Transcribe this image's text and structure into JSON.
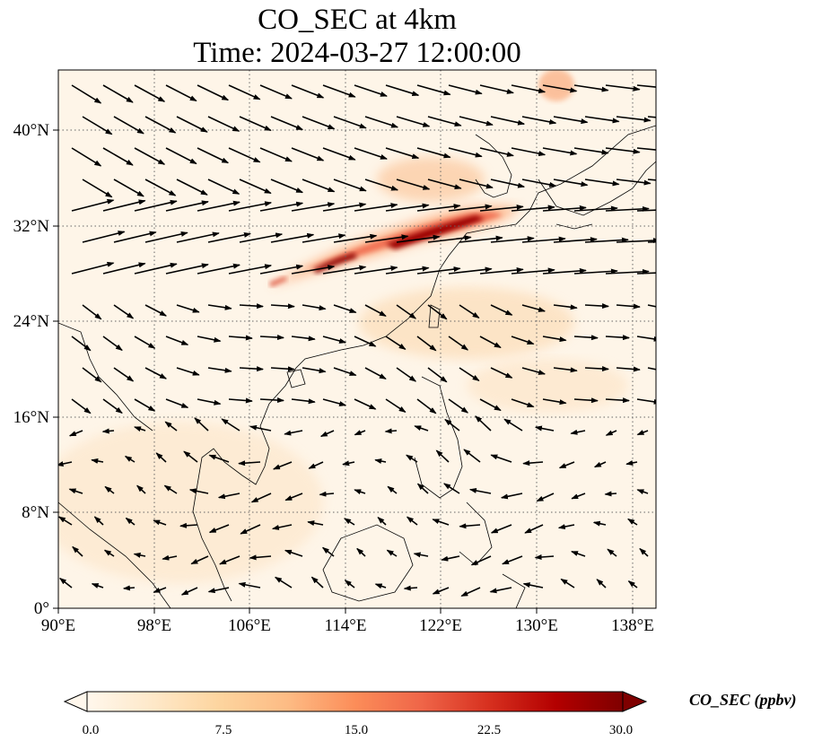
{
  "title": {
    "line1": "CO_SEC at 4km",
    "line2": "Time: 2024-03-27 12:00:00"
  },
  "map": {
    "lon_range": [
      90,
      140
    ],
    "lat_range": [
      0,
      45
    ],
    "x_ticks": [
      "90°E",
      "98°E",
      "106°E",
      "114°E",
      "122°E",
      "130°E",
      "138°E"
    ],
    "y_ticks": [
      "0°",
      "8°N",
      "16°N",
      "24°N",
      "32°N",
      "40°N"
    ],
    "gridlines": "dotted"
  },
  "colorbar": {
    "label": "CO_SEC (ppbv)",
    "ticks": [
      "0.0",
      "7.5",
      "15.0",
      "22.5",
      "30.0"
    ],
    "range": [
      0,
      30
    ],
    "extend": "both",
    "colormap": "OrRd",
    "colors": [
      "#fff7ec",
      "#fee8c8",
      "#fdd49e",
      "#fdbb84",
      "#fc8d59",
      "#ef6548",
      "#d7301f",
      "#b30000",
      "#7f0000"
    ]
  },
  "plume": {
    "description_color_high": "#7f0000",
    "description_color_mid": "#ef6548",
    "description_color_low": "#fdd49e"
  }
}
